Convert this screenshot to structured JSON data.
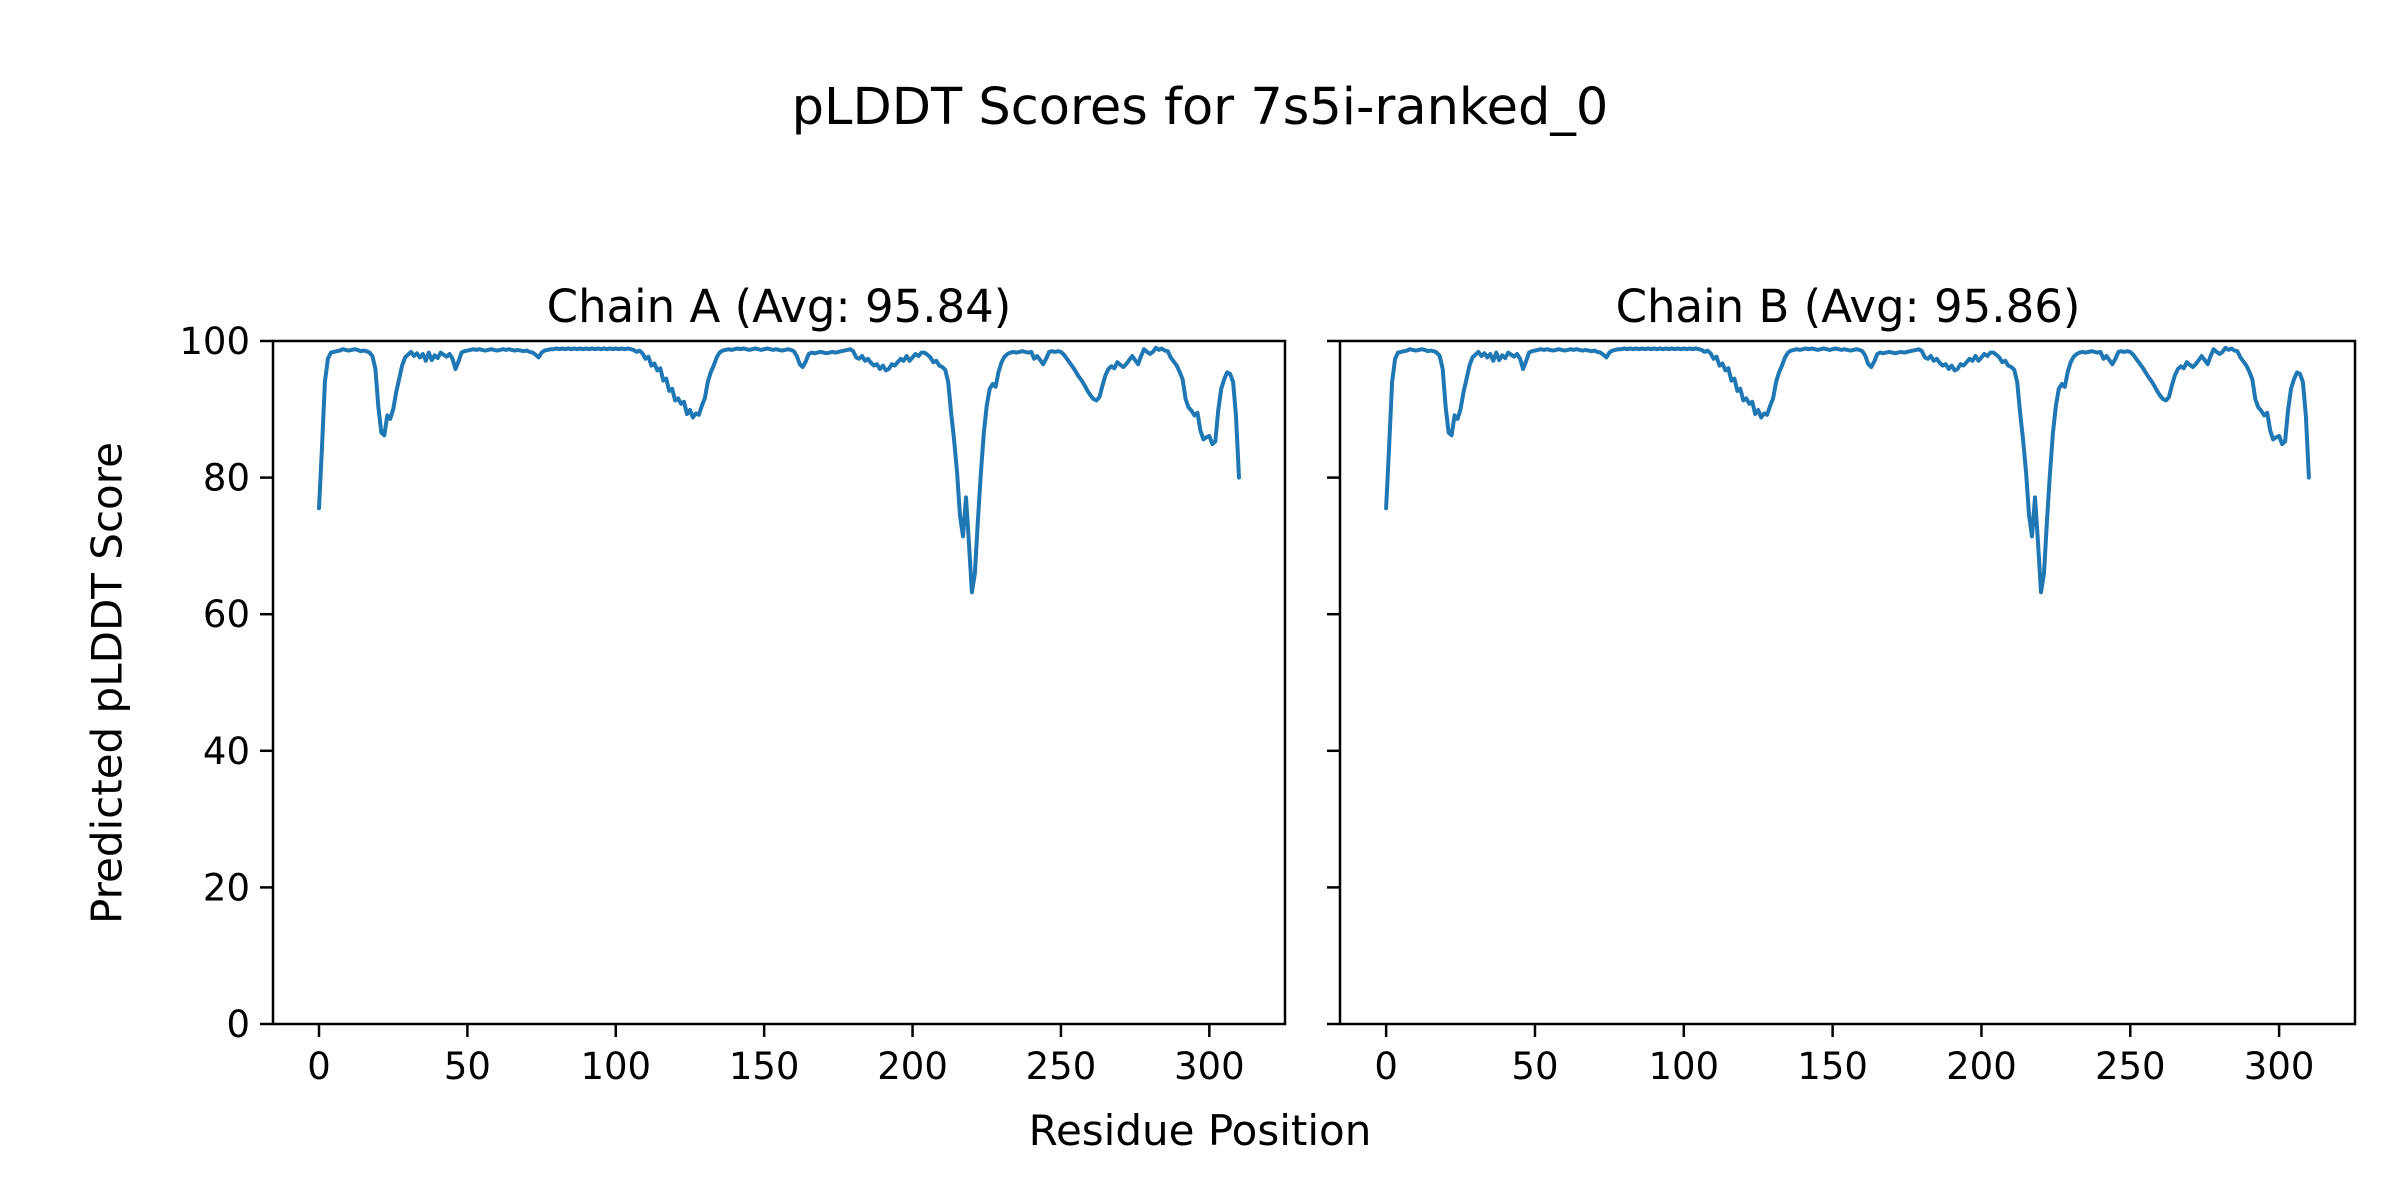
{
  "figure": {
    "title": "pLDDT Scores for 7s5i-ranked_0"
  },
  "chart_data": {
    "type": "line",
    "title": "pLDDT Scores for 7s5i-ranked_0",
    "xlabel": "Residue Position",
    "ylabel": "Predicted pLDDT Score",
    "line_color": "#1f77b4",
    "text_color": "#000000",
    "background_color": "#ffffff",
    "grid": false,
    "legend": "none",
    "xlim": [
      -15.5,
      325.5
    ],
    "ylim": [
      0,
      100
    ],
    "xticks": [
      0,
      50,
      100,
      150,
      200,
      250,
      300
    ],
    "yticks": [
      0,
      20,
      40,
      60,
      80,
      100
    ],
    "x_is_residue_index_starting_at": 0,
    "subplots": [
      {
        "title": "Chain A (Avg: 95.84)",
        "series_name": "Chain A",
        "avg": 95.84,
        "values": [
          75.5,
          84.5,
          94.0,
          97.4,
          98.3,
          98.4,
          98.5,
          98.6,
          98.8,
          98.7,
          98.6,
          98.7,
          98.8,
          98.7,
          98.5,
          98.6,
          98.5,
          98.3,
          97.8,
          95.9,
          90.3,
          86.6,
          86.2,
          89.1,
          88.6,
          90.0,
          92.5,
          94.4,
          96.4,
          97.6,
          98.0,
          98.4,
          97.8,
          98.2,
          97.6,
          98.1,
          97.1,
          98.3,
          97.2,
          97.9,
          97.5,
          98.3,
          98.0,
          97.7,
          98.1,
          97.4,
          95.9,
          97.0,
          98.3,
          98.5,
          98.6,
          98.7,
          98.8,
          98.7,
          98.8,
          98.7,
          98.6,
          98.7,
          98.8,
          98.7,
          98.6,
          98.7,
          98.8,
          98.7,
          98.8,
          98.7,
          98.6,
          98.7,
          98.6,
          98.5,
          98.6,
          98.4,
          98.3,
          98.0,
          97.6,
          98.3,
          98.6,
          98.7,
          98.8,
          98.8,
          98.9,
          98.8,
          98.9,
          98.8,
          98.9,
          98.8,
          98.9,
          98.8,
          98.9,
          98.8,
          98.9,
          98.8,
          98.9,
          98.8,
          98.9,
          98.8,
          98.9,
          98.8,
          98.9,
          98.8,
          98.9,
          98.8,
          98.9,
          98.8,
          98.9,
          98.8,
          98.7,
          98.4,
          98.6,
          98.2,
          97.4,
          97.7,
          96.4,
          96.7,
          95.7,
          96.0,
          94.2,
          94.5,
          92.7,
          93.0,
          91.3,
          91.6,
          90.8,
          91.1,
          89.3,
          89.9,
          88.8,
          89.4,
          89.2,
          90.5,
          91.6,
          94.0,
          95.4,
          96.4,
          97.6,
          98.3,
          98.6,
          98.7,
          98.8,
          98.7,
          98.8,
          98.9,
          98.8,
          98.9,
          98.8,
          98.7,
          98.8,
          98.9,
          98.8,
          98.7,
          98.8,
          98.9,
          98.8,
          98.7,
          98.8,
          98.7,
          98.6,
          98.7,
          98.8,
          98.7,
          98.5,
          97.8,
          96.6,
          96.2,
          97.0,
          98.1,
          98.3,
          98.2,
          98.3,
          98.4,
          98.3,
          98.2,
          98.3,
          98.4,
          98.3,
          98.4,
          98.5,
          98.6,
          98.7,
          98.8,
          98.5,
          97.6,
          97.4,
          97.8,
          97.1,
          97.4,
          96.8,
          96.4,
          96.6,
          95.9,
          96.4,
          95.7,
          95.9,
          96.6,
          96.4,
          96.9,
          97.4,
          97.1,
          97.8,
          97.1,
          97.6,
          98.1,
          97.8,
          98.3,
          98.3,
          98.0,
          97.6,
          96.9,
          97.1,
          96.4,
          96.2,
          95.8,
          94.0,
          89.5,
          85.5,
          80.7,
          74.4,
          71.4,
          77.1,
          70.5,
          63.2,
          66.0,
          73.5,
          80.5,
          86.5,
          90.5,
          93.0,
          93.7,
          93.3,
          95.5,
          96.9,
          97.7,
          98.1,
          98.3,
          98.4,
          98.3,
          98.4,
          98.5,
          98.4,
          98.3,
          98.4,
          97.4,
          97.8,
          97.2,
          96.6,
          97.4,
          98.4,
          98.5,
          98.4,
          98.5,
          98.4,
          98.0,
          97.4,
          96.8,
          96.2,
          95.5,
          94.8,
          94.2,
          93.5,
          92.7,
          92.0,
          91.5,
          91.3,
          91.8,
          93.5,
          95.0,
          95.9,
          96.3,
          96.0,
          96.9,
          96.5,
          96.2,
          96.6,
          97.2,
          97.8,
          97.2,
          96.6,
          97.8,
          98.8,
          98.4,
          98.1,
          98.4,
          99.0,
          98.7,
          98.9,
          98.6,
          98.5,
          97.6,
          97.0,
          96.4,
          95.5,
          94.4,
          91.5,
          90.3,
          89.8,
          89.1,
          89.5,
          86.9,
          85.6,
          85.9,
          86.1,
          84.9,
          85.3,
          89.8,
          93.0,
          94.4,
          95.4,
          95.2,
          94.0,
          89.0,
          80.0
        ]
      },
      {
        "title": "Chain B (Avg: 95.86)",
        "series_name": "Chain B",
        "avg": 95.86,
        "values": [
          75.5,
          84.5,
          94.0,
          97.4,
          98.3,
          98.4,
          98.5,
          98.6,
          98.8,
          98.7,
          98.6,
          98.7,
          98.8,
          98.7,
          98.5,
          98.6,
          98.5,
          98.3,
          97.8,
          95.9,
          90.3,
          86.6,
          86.2,
          89.1,
          88.6,
          90.0,
          92.5,
          94.4,
          96.4,
          97.6,
          98.0,
          98.4,
          97.8,
          98.2,
          97.6,
          98.1,
          97.1,
          98.3,
          97.2,
          97.9,
          97.5,
          98.3,
          98.0,
          97.7,
          98.1,
          97.4,
          95.9,
          97.0,
          98.3,
          98.5,
          98.6,
          98.7,
          98.8,
          98.7,
          98.8,
          98.7,
          98.6,
          98.7,
          98.8,
          98.7,
          98.6,
          98.7,
          98.8,
          98.7,
          98.8,
          98.7,
          98.6,
          98.7,
          98.6,
          98.5,
          98.6,
          98.4,
          98.3,
          98.0,
          97.6,
          98.3,
          98.6,
          98.7,
          98.8,
          98.8,
          98.9,
          98.8,
          98.9,
          98.8,
          98.9,
          98.8,
          98.9,
          98.8,
          98.9,
          98.8,
          98.9,
          98.8,
          98.9,
          98.8,
          98.9,
          98.8,
          98.9,
          98.8,
          98.9,
          98.8,
          98.9,
          98.8,
          98.9,
          98.8,
          98.9,
          98.8,
          98.7,
          98.4,
          98.6,
          98.2,
          97.4,
          97.7,
          96.4,
          96.7,
          95.7,
          96.0,
          94.2,
          94.5,
          92.7,
          93.0,
          91.3,
          91.6,
          90.8,
          91.1,
          89.3,
          89.9,
          88.8,
          89.4,
          89.2,
          90.5,
          91.6,
          94.0,
          95.4,
          96.4,
          97.6,
          98.3,
          98.6,
          98.7,
          98.8,
          98.7,
          98.8,
          98.9,
          98.8,
          98.9,
          98.8,
          98.7,
          98.8,
          98.9,
          98.8,
          98.7,
          98.8,
          98.9,
          98.8,
          98.7,
          98.8,
          98.7,
          98.6,
          98.7,
          98.8,
          98.7,
          98.5,
          97.8,
          96.6,
          96.2,
          97.0,
          98.1,
          98.3,
          98.2,
          98.3,
          98.4,
          98.3,
          98.2,
          98.3,
          98.4,
          98.3,
          98.4,
          98.5,
          98.6,
          98.7,
          98.8,
          98.5,
          97.6,
          97.4,
          97.8,
          97.1,
          97.4,
          96.8,
          96.4,
          96.6,
          95.9,
          96.4,
          95.7,
          95.9,
          96.6,
          96.4,
          96.9,
          97.4,
          97.1,
          97.8,
          97.1,
          97.6,
          98.1,
          97.8,
          98.3,
          98.3,
          98.0,
          97.6,
          96.9,
          97.1,
          96.4,
          96.2,
          95.8,
          94.0,
          89.5,
          85.5,
          80.7,
          74.4,
          71.4,
          77.1,
          70.5,
          63.2,
          66.0,
          73.5,
          80.5,
          86.5,
          90.5,
          93.0,
          93.7,
          93.3,
          95.5,
          96.9,
          97.7,
          98.1,
          98.3,
          98.4,
          98.3,
          98.4,
          98.5,
          98.4,
          98.3,
          98.4,
          97.4,
          97.8,
          97.2,
          96.6,
          97.4,
          98.4,
          98.5,
          98.4,
          98.5,
          98.4,
          98.0,
          97.4,
          96.8,
          96.2,
          95.5,
          94.8,
          94.2,
          93.5,
          92.7,
          92.0,
          91.5,
          91.3,
          91.8,
          93.5,
          95.0,
          95.9,
          96.3,
          96.0,
          96.9,
          96.5,
          96.2,
          96.6,
          97.2,
          97.8,
          97.2,
          96.6,
          97.8,
          98.8,
          98.4,
          98.1,
          98.4,
          99.0,
          98.7,
          98.9,
          98.6,
          98.5,
          97.6,
          97.0,
          96.4,
          95.5,
          94.4,
          91.5,
          90.3,
          89.8,
          89.1,
          89.5,
          86.9,
          85.6,
          85.9,
          86.1,
          84.9,
          85.3,
          89.8,
          93.0,
          94.4,
          95.4,
          95.2,
          94.0,
          89.0,
          80.0
        ]
      }
    ]
  }
}
